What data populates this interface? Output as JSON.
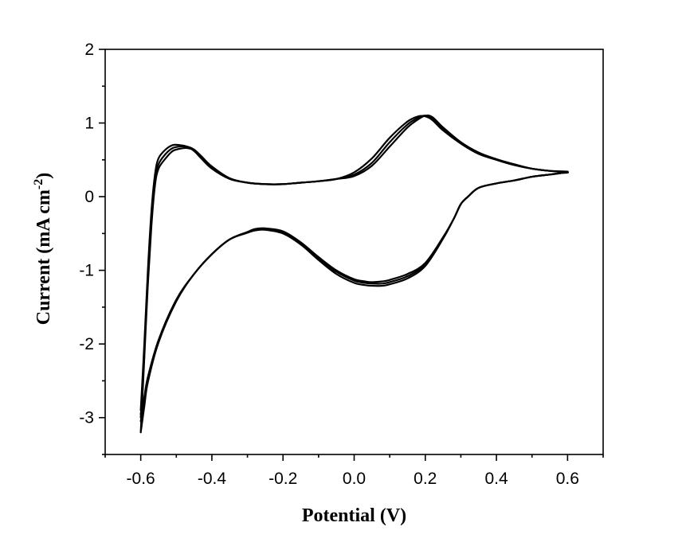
{
  "chart_data": {
    "type": "line",
    "xlabel": "Potential (V)",
    "ylabel": "Current (mA cm-2)",
    "ylabel_parts": {
      "main": "Current (mA cm",
      "sup": "-2",
      "end": ")"
    },
    "xlim": [
      -0.7,
      0.7
    ],
    "ylim": [
      -3.5,
      2
    ],
    "x_ticks": [
      -0.6,
      -0.4,
      -0.2,
      0.0,
      0.2,
      0.4,
      0.6
    ],
    "x_tick_labels": [
      "-0.6",
      "-0.4",
      "-0.2",
      "0.0",
      "0.2",
      "0.4",
      "0.6"
    ],
    "y_ticks": [
      -3,
      -2,
      -1,
      0,
      1,
      2
    ],
    "y_tick_labels": [
      "-3",
      "-2",
      "-1",
      "0",
      "1",
      "2"
    ],
    "grid": false,
    "legend": "none",
    "series": [
      {
        "x": [
          -0.6,
          -0.59,
          -0.58,
          -0.57,
          -0.56,
          -0.55,
          -0.53,
          -0.51,
          -0.49,
          -0.47,
          -0.45,
          -0.43,
          -0.4,
          -0.35,
          -0.3,
          -0.25,
          -0.2,
          -0.15,
          -0.1,
          -0.05,
          0.0,
          0.05,
          0.1,
          0.15,
          0.18,
          0.2,
          0.22,
          0.25,
          0.3,
          0.35,
          0.4,
          0.45,
          0.5,
          0.55,
          0.6,
          0.58,
          0.55,
          0.5,
          0.45,
          0.4,
          0.35,
          0.32,
          0.3,
          0.28,
          0.25,
          0.2,
          0.15,
          0.1,
          0.08,
          0.05,
          0.03,
          0.0,
          -0.05,
          -0.1,
          -0.15,
          -0.2,
          -0.25,
          -0.28,
          -0.3,
          -0.35,
          -0.4,
          -0.45,
          -0.5,
          -0.55,
          -0.58,
          -0.59,
          -0.6
        ],
        "y": [
          -2.9,
          -2.0,
          -1.0,
          -0.2,
          0.3,
          0.52,
          0.64,
          0.7,
          0.7,
          0.68,
          0.62,
          0.52,
          0.38,
          0.24,
          0.19,
          0.17,
          0.17,
          0.19,
          0.21,
          0.24,
          0.33,
          0.52,
          0.8,
          1.02,
          1.09,
          1.09,
          1.04,
          0.9,
          0.72,
          0.58,
          0.5,
          0.43,
          0.38,
          0.35,
          0.33,
          0.32,
          0.3,
          0.27,
          0.22,
          0.18,
          0.12,
          0.0,
          -0.1,
          -0.3,
          -0.55,
          -0.9,
          -1.05,
          -1.13,
          -1.15,
          -1.16,
          -1.15,
          -1.12,
          -1.0,
          -0.82,
          -0.62,
          -0.47,
          -0.43,
          -0.44,
          -0.48,
          -0.58,
          -0.78,
          -1.05,
          -1.4,
          -1.95,
          -2.45,
          -2.72,
          -2.95
        ]
      },
      {
        "x": [
          -0.6,
          -0.59,
          -0.58,
          -0.57,
          -0.56,
          -0.55,
          -0.53,
          -0.51,
          -0.49,
          -0.47,
          -0.45,
          -0.43,
          -0.4,
          -0.35,
          -0.3,
          -0.25,
          -0.2,
          -0.15,
          -0.1,
          -0.05,
          0.0,
          0.05,
          0.1,
          0.15,
          0.18,
          0.2,
          0.22,
          0.25,
          0.3,
          0.35,
          0.4,
          0.45,
          0.5,
          0.55,
          0.6,
          0.58,
          0.55,
          0.5,
          0.45,
          0.4,
          0.35,
          0.32,
          0.3,
          0.28,
          0.25,
          0.2,
          0.15,
          0.1,
          0.08,
          0.05,
          0.03,
          0.0,
          -0.05,
          -0.1,
          -0.15,
          -0.2,
          -0.25,
          -0.28,
          -0.3,
          -0.35,
          -0.4,
          -0.45,
          -0.5,
          -0.55,
          -0.58,
          -0.59,
          -0.6
        ],
        "y": [
          -3.0,
          -2.1,
          -1.1,
          -0.3,
          0.22,
          0.44,
          0.58,
          0.66,
          0.68,
          0.68,
          0.64,
          0.55,
          0.4,
          0.25,
          0.19,
          0.17,
          0.17,
          0.19,
          0.21,
          0.24,
          0.3,
          0.46,
          0.74,
          0.98,
          1.07,
          1.1,
          1.06,
          0.92,
          0.73,
          0.59,
          0.5,
          0.43,
          0.38,
          0.35,
          0.33,
          0.32,
          0.3,
          0.27,
          0.22,
          0.18,
          0.12,
          0.0,
          -0.1,
          -0.3,
          -0.56,
          -0.92,
          -1.08,
          -1.16,
          -1.18,
          -1.18,
          -1.17,
          -1.14,
          -1.02,
          -0.84,
          -0.63,
          -0.48,
          -0.44,
          -0.45,
          -0.48,
          -0.58,
          -0.78,
          -1.05,
          -1.4,
          -1.95,
          -2.48,
          -2.78,
          -3.05
        ]
      },
      {
        "x": [
          -0.6,
          -0.59,
          -0.58,
          -0.57,
          -0.56,
          -0.55,
          -0.53,
          -0.51,
          -0.49,
          -0.47,
          -0.45,
          -0.43,
          -0.4,
          -0.35,
          -0.3,
          -0.25,
          -0.2,
          -0.15,
          -0.1,
          -0.05,
          0.0,
          0.05,
          0.1,
          0.15,
          0.18,
          0.2,
          0.22,
          0.25,
          0.3,
          0.35,
          0.4,
          0.45,
          0.5,
          0.55,
          0.6,
          0.58,
          0.55,
          0.5,
          0.45,
          0.4,
          0.35,
          0.32,
          0.3,
          0.28,
          0.25,
          0.2,
          0.15,
          0.1,
          0.08,
          0.05,
          0.03,
          0.0,
          -0.05,
          -0.1,
          -0.15,
          -0.2,
          -0.25,
          -0.28,
          -0.3,
          -0.35,
          -0.4,
          -0.45,
          -0.5,
          -0.55,
          -0.58,
          -0.59,
          -0.6
        ],
        "y": [
          -3.2,
          -2.2,
          -1.2,
          -0.4,
          0.15,
          0.38,
          0.52,
          0.62,
          0.65,
          0.66,
          0.63,
          0.55,
          0.41,
          0.25,
          0.19,
          0.17,
          0.17,
          0.19,
          0.21,
          0.24,
          0.28,
          0.42,
          0.68,
          0.94,
          1.05,
          1.1,
          1.08,
          0.94,
          0.74,
          0.6,
          0.51,
          0.44,
          0.38,
          0.35,
          0.34,
          0.32,
          0.3,
          0.27,
          0.22,
          0.18,
          0.12,
          0.0,
          -0.1,
          -0.3,
          -0.57,
          -0.94,
          -1.11,
          -1.19,
          -1.21,
          -1.21,
          -1.2,
          -1.17,
          -1.05,
          -0.86,
          -0.65,
          -0.5,
          -0.45,
          -0.46,
          -0.49,
          -0.58,
          -0.78,
          -1.05,
          -1.42,
          -1.98,
          -2.52,
          -2.85,
          -3.2
        ]
      }
    ]
  }
}
